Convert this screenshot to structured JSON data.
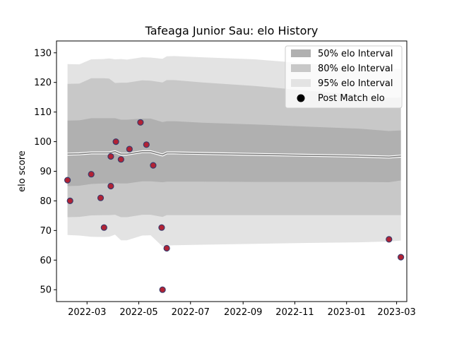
{
  "chart_data": {
    "type": "line",
    "title": "Tafeaga Junior Sau: elo History",
    "xlabel": "",
    "ylabel": "elo score",
    "xlim": [
      "2022-01-24",
      "2023-03-13"
    ],
    "ylim": [
      46,
      134
    ],
    "xticks": [
      "2022-03",
      "2022-05",
      "2022-07",
      "2022-09",
      "2022-11",
      "2023-01",
      "2023-03"
    ],
    "yticks": [
      50,
      60,
      70,
      80,
      90,
      100,
      110,
      120,
      130
    ],
    "grid": false,
    "legend": {
      "placement": "top-right",
      "entries": [
        "50% elo Interval",
        "80% elo Interval",
        "95% elo Interval",
        "Post Match elo"
      ]
    },
    "colors": {
      "band50": "#b0b0b0",
      "band80": "#c8c8c8",
      "band95": "#e3e3e3",
      "mean_line": "#808080",
      "points_fill": "#b22234",
      "points_edge": "#3b3b6b"
    },
    "mean_line": {
      "x": [
        "2022-02-06",
        "2022-02-20",
        "2022-03-06",
        "2022-03-20",
        "2022-03-27",
        "2022-04-03",
        "2022-04-10",
        "2022-04-17",
        "2022-05-05",
        "2022-05-15",
        "2022-05-29",
        "2022-06-03",
        "2022-06-12",
        "2022-07-15",
        "2022-09-15",
        "2022-11-15",
        "2023-01-15",
        "2023-02-20",
        "2023-03-06"
      ],
      "y": [
        95.8,
        95.9,
        96.2,
        96.2,
        96.2,
        96.6,
        95.8,
        95.8,
        96.6,
        96.6,
        95.5,
        96.2,
        96.2,
        96.0,
        95.7,
        95.4,
        95.1,
        94.8,
        95.1
      ]
    },
    "bands": [
      {
        "name": "95% elo Interval",
        "x": [
          "2022-02-06",
          "2022-02-20",
          "2022-03-06",
          "2022-03-20",
          "2022-03-27",
          "2022-04-03",
          "2022-04-10",
          "2022-04-17",
          "2022-05-05",
          "2022-05-15",
          "2022-05-29",
          "2022-06-03",
          "2022-06-12",
          "2022-07-15",
          "2022-09-15",
          "2022-11-15",
          "2023-01-15",
          "2023-02-20",
          "2023-03-06"
        ],
        "low": [
          68.5,
          68.3,
          67.9,
          67.8,
          67.9,
          68.6,
          66.7,
          66.7,
          68.3,
          68.4,
          64.6,
          64.9,
          65.0,
          65.2,
          65.5,
          65.8,
          66.0,
          66.3,
          66.6
        ],
        "high": [
          126.2,
          126.1,
          127.8,
          127.9,
          128.1,
          127.8,
          127.9,
          127.7,
          128.5,
          128.4,
          128.0,
          128.8,
          128.9,
          128.5,
          127.8,
          126.4,
          125.0,
          124.5,
          124.6
        ]
      },
      {
        "name": "80% elo Interval",
        "x": [
          "2022-02-06",
          "2022-02-20",
          "2022-03-06",
          "2022-03-20",
          "2022-03-27",
          "2022-04-03",
          "2022-04-10",
          "2022-04-17",
          "2022-05-05",
          "2022-05-15",
          "2022-05-29",
          "2022-06-03",
          "2022-06-12",
          "2022-07-15",
          "2022-09-15",
          "2022-11-15",
          "2023-01-15",
          "2023-02-20",
          "2023-03-06"
        ],
        "low": [
          74.5,
          74.6,
          75.1,
          75.2,
          75.2,
          75.3,
          74.5,
          74.5,
          75.3,
          75.3,
          74.6,
          75.2,
          75.2,
          75.2,
          75.2,
          75.2,
          75.2,
          75.2,
          75.2
        ],
        "high": [
          119.5,
          119.6,
          121.4,
          121.4,
          121.3,
          119.8,
          119.9,
          119.9,
          120.7,
          120.6,
          120.0,
          120.8,
          120.8,
          120.0,
          118.8,
          117.2,
          115.8,
          114.8,
          114.9
        ]
      },
      {
        "name": "50% elo Interval",
        "x": [
          "2022-02-06",
          "2022-02-20",
          "2022-03-06",
          "2022-03-20",
          "2022-03-27",
          "2022-04-03",
          "2022-04-10",
          "2022-04-17",
          "2022-05-05",
          "2022-05-15",
          "2022-05-29",
          "2022-06-03",
          "2022-06-12",
          "2022-07-15",
          "2022-09-15",
          "2022-11-15",
          "2023-01-15",
          "2023-02-20",
          "2023-03-06"
        ],
        "low": [
          85.0,
          85.1,
          85.7,
          85.9,
          85.9,
          86.0,
          85.9,
          85.9,
          86.6,
          86.6,
          86.3,
          86.5,
          86.5,
          86.5,
          86.4,
          86.4,
          86.4,
          86.3,
          86.9
        ],
        "high": [
          107.1,
          107.2,
          107.9,
          107.9,
          107.9,
          107.9,
          107.4,
          107.4,
          107.8,
          107.8,
          106.6,
          106.9,
          106.9,
          106.4,
          105.8,
          105.1,
          104.4,
          103.6,
          103.8
        ]
      }
    ],
    "points": {
      "name": "Post Match elo",
      "x": [
        "2022-02-06",
        "2022-02-09",
        "2022-03-06",
        "2022-03-17",
        "2022-03-21",
        "2022-03-29",
        "2022-03-29",
        "2022-04-04",
        "2022-04-10",
        "2022-04-20",
        "2022-05-03",
        "2022-05-10",
        "2022-05-18",
        "2022-05-28",
        "2022-05-29",
        "2022-06-03",
        "2023-02-20",
        "2023-03-06"
      ],
      "y": [
        87,
        80,
        89,
        81,
        71,
        85,
        95,
        100,
        94,
        97.5,
        106.5,
        99,
        92,
        71,
        50,
        64,
        67,
        61
      ]
    }
  }
}
